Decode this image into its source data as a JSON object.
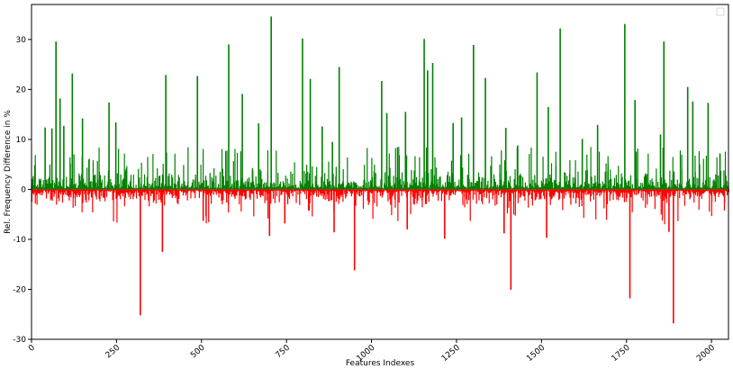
{
  "chart_data": {
    "type": "bar",
    "title": "",
    "xlabel": "Features Indexes",
    "ylabel": "Rel. Frequency Difference in %",
    "xlim": [
      0,
      2050
    ],
    "ylim": [
      -30,
      37
    ],
    "x_ticks": [
      0,
      250,
      500,
      750,
      1000,
      1250,
      1500,
      1750,
      2000
    ],
    "y_ticks": [
      -30,
      -20,
      -10,
      0,
      10,
      20,
      30
    ],
    "grid": false,
    "legend": "top-right",
    "colors": {
      "positive": "#008000",
      "negative": "#ff0000"
    },
    "positive_spikes": [
      {
        "x": 40,
        "y": 12.4
      },
      {
        "x": 60,
        "y": 12.2
      },
      {
        "x": 72,
        "y": 29.6
      },
      {
        "x": 84,
        "y": 18.2
      },
      {
        "x": 95,
        "y": 12.7
      },
      {
        "x": 120,
        "y": 23.2
      },
      {
        "x": 150,
        "y": 14.2
      },
      {
        "x": 228,
        "y": 17.4
      },
      {
        "x": 248,
        "y": 13.4
      },
      {
        "x": 395,
        "y": 22.9
      },
      {
        "x": 488,
        "y": 22.7
      },
      {
        "x": 580,
        "y": 29.0
      },
      {
        "x": 620,
        "y": 19.1
      },
      {
        "x": 668,
        "y": 13.2
      },
      {
        "x": 705,
        "y": 34.6
      },
      {
        "x": 797,
        "y": 30.2
      },
      {
        "x": 820,
        "y": 22.1
      },
      {
        "x": 855,
        "y": 12.6
      },
      {
        "x": 885,
        "y": 9.5
      },
      {
        "x": 905,
        "y": 24.5
      },
      {
        "x": 1030,
        "y": 21.7
      },
      {
        "x": 1045,
        "y": 15.3
      },
      {
        "x": 1100,
        "y": 15.5
      },
      {
        "x": 1155,
        "y": 30.1
      },
      {
        "x": 1165,
        "y": 23.8
      },
      {
        "x": 1180,
        "y": 25.3
      },
      {
        "x": 1240,
        "y": 13.3
      },
      {
        "x": 1265,
        "y": 14.4
      },
      {
        "x": 1300,
        "y": 28.9
      },
      {
        "x": 1335,
        "y": 22.3
      },
      {
        "x": 1395,
        "y": 12.3
      },
      {
        "x": 1430,
        "y": 8.8
      },
      {
        "x": 1487,
        "y": 23.4
      },
      {
        "x": 1520,
        "y": 16.5
      },
      {
        "x": 1555,
        "y": 32.2
      },
      {
        "x": 1620,
        "y": 10.1
      },
      {
        "x": 1665,
        "y": 12.9
      },
      {
        "x": 1745,
        "y": 33.1
      },
      {
        "x": 1775,
        "y": 17.9
      },
      {
        "x": 1850,
        "y": 11.0
      },
      {
        "x": 1860,
        "y": 29.6
      },
      {
        "x": 1930,
        "y": 20.5
      },
      {
        "x": 1945,
        "y": 17.6
      },
      {
        "x": 1990,
        "y": 17.3
      },
      {
        "x": 2025,
        "y": 7.2
      }
    ],
    "negative_spikes": [
      {
        "x": 320,
        "y": -25.2
      },
      {
        "x": 385,
        "y": -12.5
      },
      {
        "x": 505,
        "y": -6.3
      },
      {
        "x": 700,
        "y": -9.3
      },
      {
        "x": 745,
        "y": -6.8
      },
      {
        "x": 890,
        "y": -8.6
      },
      {
        "x": 950,
        "y": -16.2
      },
      {
        "x": 1105,
        "y": -8.0
      },
      {
        "x": 1215,
        "y": -9.9
      },
      {
        "x": 1390,
        "y": -8.8
      },
      {
        "x": 1410,
        "y": -20.1
      },
      {
        "x": 1515,
        "y": -9.7
      },
      {
        "x": 1760,
        "y": -21.8
      },
      {
        "x": 1875,
        "y": -8.5
      },
      {
        "x": 1888,
        "y": -26.8
      }
    ]
  }
}
